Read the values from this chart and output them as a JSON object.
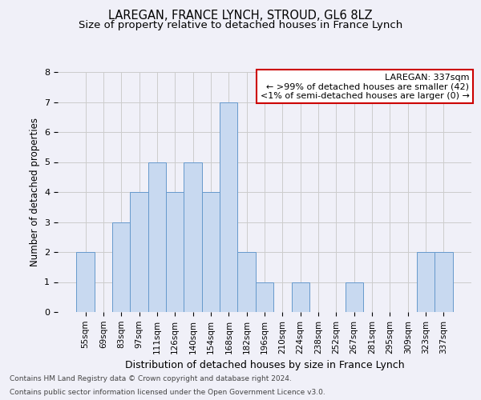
{
  "title": "LAREGAN, FRANCE LYNCH, STROUD, GL6 8LZ",
  "subtitle": "Size of property relative to detached houses in France Lynch",
  "xlabel": "Distribution of detached houses by size in France Lynch",
  "ylabel": "Number of detached properties",
  "footnote1": "Contains HM Land Registry data © Crown copyright and database right 2024.",
  "footnote2": "Contains public sector information licensed under the Open Government Licence v3.0.",
  "categories": [
    "55sqm",
    "69sqm",
    "83sqm",
    "97sqm",
    "111sqm",
    "126sqm",
    "140sqm",
    "154sqm",
    "168sqm",
    "182sqm",
    "196sqm",
    "210sqm",
    "224sqm",
    "238sqm",
    "252sqm",
    "267sqm",
    "281sqm",
    "295sqm",
    "309sqm",
    "323sqm",
    "337sqm"
  ],
  "values": [
    2,
    0,
    3,
    4,
    5,
    4,
    5,
    4,
    7,
    2,
    1,
    0,
    1,
    0,
    0,
    1,
    0,
    0,
    0,
    2,
    2
  ],
  "bar_color": "#c8d9f0",
  "bar_edge_color": "#6699cc",
  "annotation_line1": "LAREGAN: 337sqm",
  "annotation_line2": "← >99% of detached houses are smaller (42)",
  "annotation_line3": "<1% of semi-detached houses are larger (0) →",
  "annotation_box_color": "white",
  "annotation_box_edge_color": "#cc0000",
  "ylim": [
    0,
    8
  ],
  "yticks": [
    0,
    1,
    2,
    3,
    4,
    5,
    6,
    7,
    8
  ],
  "grid_color": "#cccccc",
  "bg_color": "#f0f0f8",
  "title_fontsize": 10.5,
  "subtitle_fontsize": 9.5,
  "xlabel_fontsize": 9,
  "ylabel_fontsize": 8.5,
  "tick_fontsize": 7.5,
  "annotation_fontsize": 8,
  "footnote_fontsize": 6.5
}
